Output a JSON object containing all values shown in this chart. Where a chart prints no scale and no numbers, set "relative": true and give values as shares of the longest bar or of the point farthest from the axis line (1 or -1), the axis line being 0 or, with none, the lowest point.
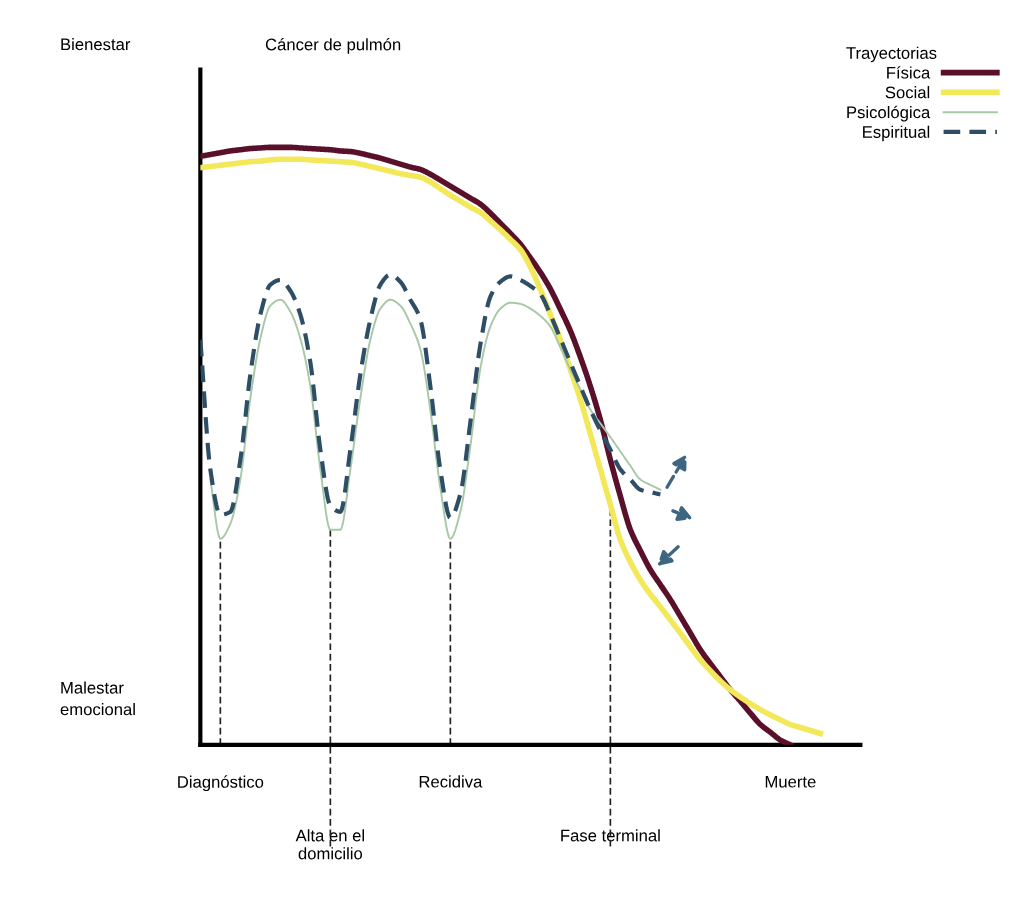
{
  "chart_data": {
    "type": "line",
    "title": "Cáncer de pulmón",
    "relative": true,
    "legend_title": "Trayectorias",
    "legend": "top right",
    "grid": false,
    "tick_labels": "x",
    "annotations": [
      "Bienestar",
      "Malestar\nemocional"
    ],
    "categories": [
      null,
      null,
      "Diagnóstico",
      null,
      null,
      null,
      null,
      null,
      null,
      null,
      null,
      null,
      null,
      "Alta en el\ndomicilio",
      null,
      null,
      null,
      null,
      null,
      null,
      null,
      null,
      null,
      null,
      null,
      "Recidiva",
      null,
      null,
      null,
      null,
      null,
      null,
      null,
      null,
      null,
      null,
      null,
      null,
      null,
      null,
      null,
      "Fase terminal",
      null,
      null,
      null,
      null,
      null,
      null,
      null,
      null,
      null,
      null,
      null,
      null,
      null,
      null,
      null,
      null,
      null,
      "Muerte",
      null,
      null,
      null,
      null,
      null,
      null,
      null
    ],
    "ref_lines": [
      {
        "axis": "x",
        "value": "Diagnóstico",
        "line_style": "dashed"
      },
      {
        "axis": "x",
        "value": "Alta en el\ndomicilio",
        "line_style": "dashed"
      },
      {
        "axis": "x",
        "value": "Recidiva",
        "line_style": "dashed"
      },
      {
        "axis": "x",
        "value": "Fase terminal",
        "line_style": "dashed"
      }
    ],
    "series": [
      {
        "name": "Física",
        "color": "#5a0f2a",
        "line_style": "solid",
        "values": [
          0.985,
          0.988,
          0.991,
          0.994,
          0.996,
          0.998,
          0.999,
          1.0,
          1.0,
          1.0,
          0.999,
          0.998,
          0.997,
          0.996,
          0.994,
          0.993,
          0.99,
          0.986,
          0.982,
          0.977,
          0.972,
          0.967,
          0.963,
          0.955,
          0.945,
          0.935,
          0.925,
          0.915,
          0.905,
          0.89,
          0.873,
          0.856,
          0.838,
          0.815,
          0.791,
          0.763,
          0.729,
          0.693,
          0.649,
          0.6,
          0.544,
          0.477,
          0.416,
          0.36,
          0.325,
          0.293,
          0.268,
          0.243,
          0.215,
          0.187,
          0.159,
          0.136,
          0.114,
          0.092,
          0.073,
          0.053,
          0.034,
          0.021,
          0.008,
          0,
          null,
          null,
          null,
          null,
          null,
          null,
          null
        ]
      },
      {
        "name": "Social",
        "color": "#f2e85a",
        "line_style": "solid",
        "values": [
          0.966,
          0.968,
          0.97,
          0.972,
          0.974,
          0.976,
          0.977,
          0.979,
          0.98,
          0.98,
          0.98,
          0.979,
          0.978,
          0.977,
          0.976,
          0.975,
          0.972,
          0.968,
          0.964,
          0.96,
          0.956,
          0.953,
          0.95,
          0.942,
          0.931,
          0.92,
          0.91,
          0.9,
          0.891,
          0.877,
          0.862,
          0.846,
          0.829,
          0.8,
          0.762,
          0.72,
          0.678,
          0.628,
          0.578,
          0.52,
          0.461,
          0.402,
          0.343,
          0.306,
          0.276,
          0.252,
          0.231,
          0.209,
          0.187,
          0.164,
          0.142,
          0.124,
          0.107,
          0.092,
          0.08,
          0.069,
          0.059,
          0.05,
          0.042,
          0.034,
          0.029,
          0.024,
          0.019,
          null,
          null,
          null,
          null
        ]
      },
      {
        "name": "Psicológica",
        "color": "#a8c8a8",
        "line_style": "solid",
        "values": [
          null,
          0.444,
          0.345,
          0.37,
          0.444,
          0.58,
          0.68,
          0.735,
          0.745,
          0.725,
          0.68,
          0.6,
          0.461,
          0.36,
          0.36,
          0.461,
          0.58,
          0.678,
          0.73,
          0.745,
          0.735,
          0.705,
          0.662,
          0.56,
          0.43,
          0.345,
          0.39,
          0.5,
          0.63,
          0.7,
          0.73,
          0.74,
          0.738,
          0.73,
          0.718,
          0.7,
          0.665,
          0.628,
          0.595,
          0.561,
          0.538,
          0.515,
          0.491,
          0.467,
          0.444,
          0.435,
          0.427,
          null,
          null,
          null,
          null,
          null,
          null,
          null,
          null,
          null,
          null,
          null,
          null,
          null,
          null,
          null,
          null,
          null,
          null,
          null,
          null
        ]
      },
      {
        "name": "Espiritual",
        "color": "#2e4e66",
        "line_style": "dashed",
        "values": [
          0.678,
          0.461,
          0.385,
          0.39,
          0.477,
          0.62,
          0.72,
          0.77,
          0.778,
          0.76,
          0.72,
          0.64,
          0.494,
          0.4,
          0.39,
          0.494,
          0.62,
          0.712,
          0.77,
          0.787,
          0.775,
          0.745,
          0.712,
          0.6,
          0.46,
          0.38,
          0.42,
          0.54,
          0.67,
          0.75,
          0.775,
          0.784,
          0.778,
          0.768,
          0.754,
          0.72,
          0.68,
          0.64,
          0.6,
          0.561,
          0.526,
          0.494,
          0.461,
          0.444,
          0.427,
          0.423,
          0.419,
          null,
          null,
          null,
          null,
          null,
          null,
          null,
          null,
          null,
          null,
          null,
          null,
          null,
          null,
          null,
          null,
          null,
          null,
          null,
          null
        ]
      }
    ]
  }
}
